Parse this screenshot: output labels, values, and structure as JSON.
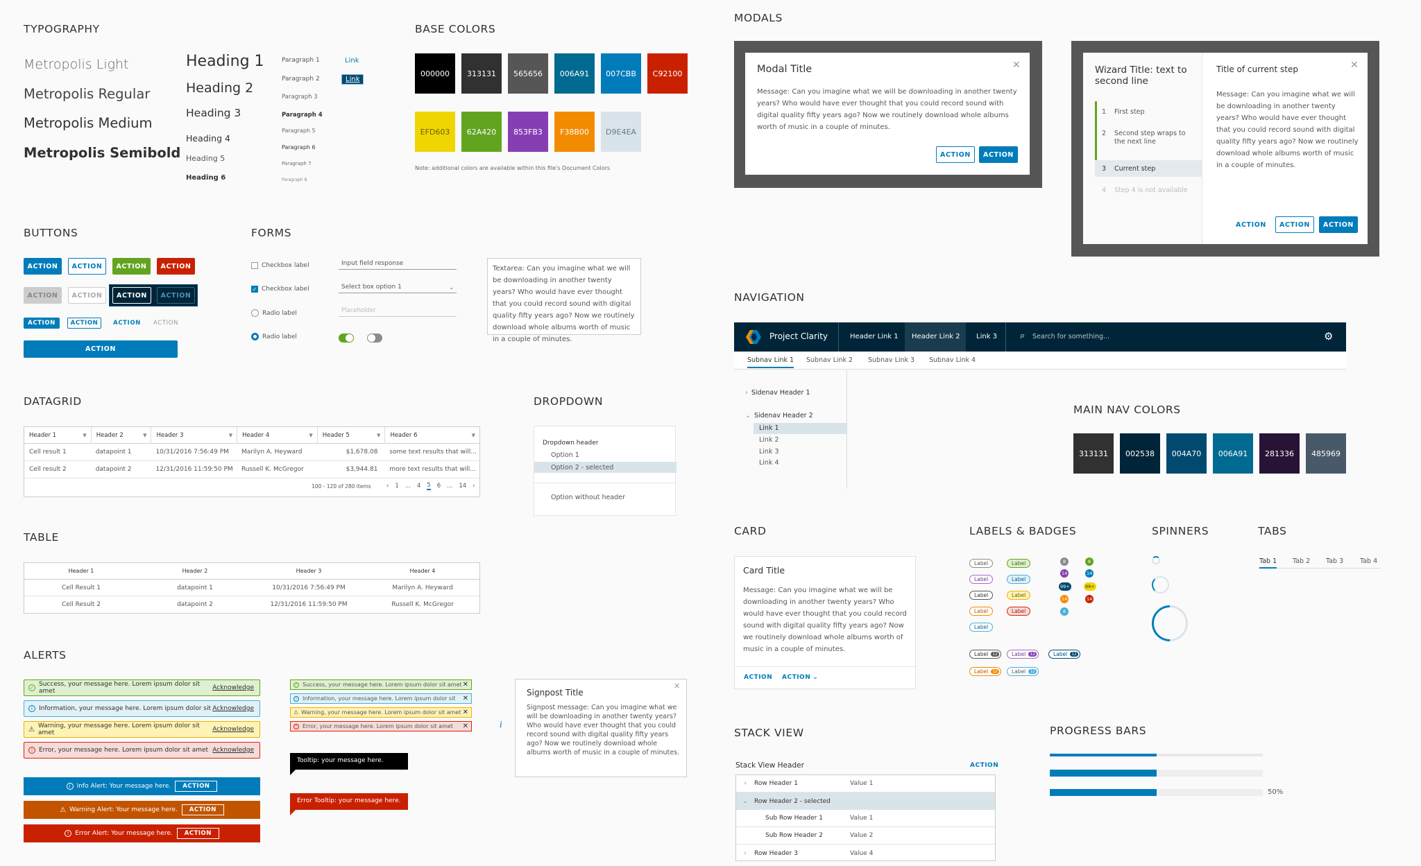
{
  "sections": {
    "typography": "TYPOGRAPHY",
    "base_colors": "BASE COLORS",
    "modals": "MODALS",
    "buttons": "BUTTONS",
    "forms": "FORMS",
    "navigation": "NAVIGATION",
    "datagrid": "DATAGRID",
    "dropdown": "DROPDOWN",
    "main_nav_colors": "MAIN NAV COLORS",
    "table": "TABLE",
    "card": "CARD",
    "labels_badges": "LABELS & BADGES",
    "spinners": "SPINNERS",
    "tabs": "TABS",
    "alerts": "ALERTS",
    "stack_view": "STACK VIEW",
    "progress_bars": "PROGRESS BARS"
  },
  "typography": {
    "fonts": [
      "Metropolis Light",
      "Metropolis Regular",
      "Metropolis Medium",
      "Metropolis Semibold"
    ],
    "headings": [
      "Heading 1",
      "Heading 2",
      "Heading 3",
      "Heading 4",
      "Heading 5",
      "Heading 6"
    ],
    "paragraphs": [
      "Paragraph 1",
      "Paragraph 2",
      "Paragraph 3",
      "Paragraph 4",
      "Paragraph 5",
      "Paragraph 6",
      "Paragraph 7",
      "Paragraph 8"
    ],
    "link": "Link",
    "link_active": "Link"
  },
  "base_colors": {
    "row1": [
      {
        "hex": "000000",
        "color": "#000000",
        "text": "#ffffff"
      },
      {
        "hex": "313131",
        "color": "#313131",
        "text": "#ffffff"
      },
      {
        "hex": "565656",
        "color": "#565656",
        "text": "#ffffff"
      },
      {
        "hex": "006A91",
        "color": "#006A91",
        "text": "#ffffff"
      },
      {
        "hex": "007CBB",
        "color": "#007CBB",
        "text": "#ffffff"
      },
      {
        "hex": "C92100",
        "color": "#C92100",
        "text": "#ffffff"
      }
    ],
    "row2": [
      {
        "hex": "EFD603",
        "color": "#EFD603",
        "text": "#6b5f00"
      },
      {
        "hex": "62A420",
        "color": "#62A420",
        "text": "#ffffff"
      },
      {
        "hex": "853FB3",
        "color": "#853FB3",
        "text": "#ffffff"
      },
      {
        "hex": "F38B00",
        "color": "#F38B00",
        "text": "#ffffff"
      },
      {
        "hex": "D9E4EA",
        "color": "#D9E4EA",
        "text": "#6a7a84"
      }
    ],
    "note": "Note: additional colors are available within this file's Document Colors"
  },
  "modal": {
    "title": "Modal Title",
    "message": "Message: Can you imagine what we will be downloading in another twenty years? Who would have ever thought that you could record sound with digital quality fifty years ago? Now we routinely download whole albums worth of music in a couple of minutes.",
    "btn_outline": "ACTION",
    "btn_primary": "ACTION"
  },
  "wizard": {
    "title": "Wizard Title: text to second line",
    "steps": [
      {
        "num": "1",
        "label": "First step"
      },
      {
        "num": "2",
        "label": "Second step wraps to the next line"
      },
      {
        "num": "3",
        "label": "Current step"
      },
      {
        "num": "4",
        "label": "Step 4 is not available"
      }
    ],
    "step_title": "Title of current step",
    "message": "Message: Can you imagine what we will be downloading in another twenty years? Who would have ever thought that you could record sound with digital quality fifty years ago? Now we routinely download whole albums worth of music in a couple of minutes.",
    "btn_flat": "ACTION",
    "btn_outline": "ACTION",
    "btn_primary": "ACTION"
  },
  "buttons": {
    "label": "ACTION"
  },
  "forms": {
    "checkbox1": "Checkbox label",
    "checkbox2": "Checkbox label",
    "radio1": "Radio label",
    "radio2": "Radio label",
    "input_value": "Input field response",
    "select_value": "Select box option 1",
    "placeholder": "Placeholder",
    "textarea": "Textarea: Can you imagine what we will be downloading in another twenty years? Who would have ever thought that you could record sound with digital quality fifty years ago? Now we routinely download whole albums worth of music in a couple of minutes."
  },
  "navigation": {
    "brand": "Project Clarity",
    "header_links": [
      "Header Link 1",
      "Header Link 2",
      "Link 3"
    ],
    "search_placeholder": "Search for something...",
    "subnav": [
      "Subnav Link 1",
      "Subnav Link 2",
      "Subnav Link 3",
      "Subnav Link 4"
    ],
    "sidenav_header1": "Sidenav Header 1",
    "sidenav_header2": "Sidenav Header 2",
    "sidenav_links": [
      "Link 1",
      "Link 2",
      "Link 3",
      "Link 4"
    ]
  },
  "main_nav_colors": [
    {
      "hex": "313131",
      "color": "#313131"
    },
    {
      "hex": "002538",
      "color": "#002538"
    },
    {
      "hex": "004A70",
      "color": "#004A70"
    },
    {
      "hex": "006A91",
      "color": "#006A91"
    },
    {
      "hex": "281336",
      "color": "#281336"
    },
    {
      "hex": "485969",
      "color": "#485969"
    }
  ],
  "datagrid": {
    "headers": [
      "Header 1",
      "Header 2",
      "Header 3",
      "Header 4",
      "Header 5",
      "Header 6"
    ],
    "rows": [
      [
        "Cell result 1",
        "datapoint 1",
        "10/31/2016 7:56:49 PM",
        "Marilyn A. Heyward",
        "$1,678.08",
        "some text results that will..."
      ],
      [
        "Cell result 2",
        "datapoint 2",
        "12/31/2016 11:59:50 PM",
        "Russell K. McGregor",
        "$3,944.81",
        "more text results that will..."
      ]
    ],
    "footer": "100 - 120 of 280 items",
    "pages": [
      "1",
      "...",
      "4",
      "5",
      "6",
      "...",
      "14"
    ]
  },
  "dropdown": {
    "header": "Dropdown header",
    "option1": "Option 1",
    "option2": "Option 2 - selected",
    "option_no_header": "Option without header"
  },
  "table": {
    "headers": [
      "Header 1",
      "Header 2",
      "Header 3",
      "Header 4"
    ],
    "rows": [
      [
        "Cell Result 1",
        "datapoint 1",
        "10/31/2016 7:56:49 PM",
        "Marilyn A. Heyward"
      ],
      [
        "Cell Result 2",
        "datapoint 2",
        "12/31/2016 11:59:50 PM",
        "Russell K. McGregor"
      ]
    ]
  },
  "card": {
    "title": "Card Title",
    "message": "Message: Can you imagine what we will be downloading in another twenty years? Who would have ever thought that you could record sound with digital quality fifty years ago? Now we routinely download whole albums worth of music in a couple of minutes.",
    "action1": "ACTION",
    "action2": "ACTION"
  },
  "labels": {
    "text": "Label",
    "badge_values": [
      "8",
      "8",
      "14",
      "14",
      "99+",
      "99+",
      "14",
      "14",
      "8"
    ],
    "label_counts": [
      "12",
      "12",
      "12",
      "12",
      "12"
    ]
  },
  "tabs": [
    "Tab 1",
    "Tab 2",
    "Tab 3",
    "Tab 4"
  ],
  "alerts": {
    "success": "Success, your message here. Lorem ipsum dolor sit amet",
    "info": "Information, your message here. Lorem ipsum dolor sit",
    "warning": "Warning, your message here. Lorem ipsum dolor sit amet",
    "error": "Error, your message here. Lorem ipsum dolor sit amet",
    "acknowledge": "Acknowledge",
    "small_success": "Success, your message here. Lorem ipsum dolor sit amet",
    "small_info": "Information, your message here. Lorem ipsum dolor sit",
    "small_warning": "Warning, your message here. Lorem ipsum dolor sit amet",
    "small_error": "Error, your message here. Lorem ipsum dolor sit amet",
    "tooltip": "Tooltip: your message here.",
    "error_tooltip": "Error Tooltip: your message here.",
    "banner_info": "Info Alert: Your message here.",
    "banner_warning": "Warning Alert: Your message here.",
    "banner_error": "Error Alert: Your message here.",
    "banner_action": "ACTION",
    "signpost_title": "Signpost Title",
    "signpost_message": "Signpost message: Can you imagine what we will be downloading in another twenty years? Who would have ever thought that you could record sound with digital quality fifty years ago? Now we routinely download whole albums worth of music in a couple of minutes.",
    "info_icon": "i"
  },
  "stack_view": {
    "header": "Stack View Header",
    "action": "ACTION",
    "rows": [
      {
        "label": "Row Header 1",
        "value": "Value 1"
      },
      {
        "label": "Row Header 2 - selected",
        "value": ""
      },
      {
        "label": "Sub Row Header 1",
        "value": "Value 1"
      },
      {
        "label": "Sub Row Header 2",
        "value": "Value 2"
      },
      {
        "label": "Row Header 3",
        "value": "Value 4"
      }
    ]
  },
  "progress": {
    "bar1": 0.5,
    "bar2": 0.5,
    "bar3": 0.5,
    "bar3_label": "50%"
  }
}
